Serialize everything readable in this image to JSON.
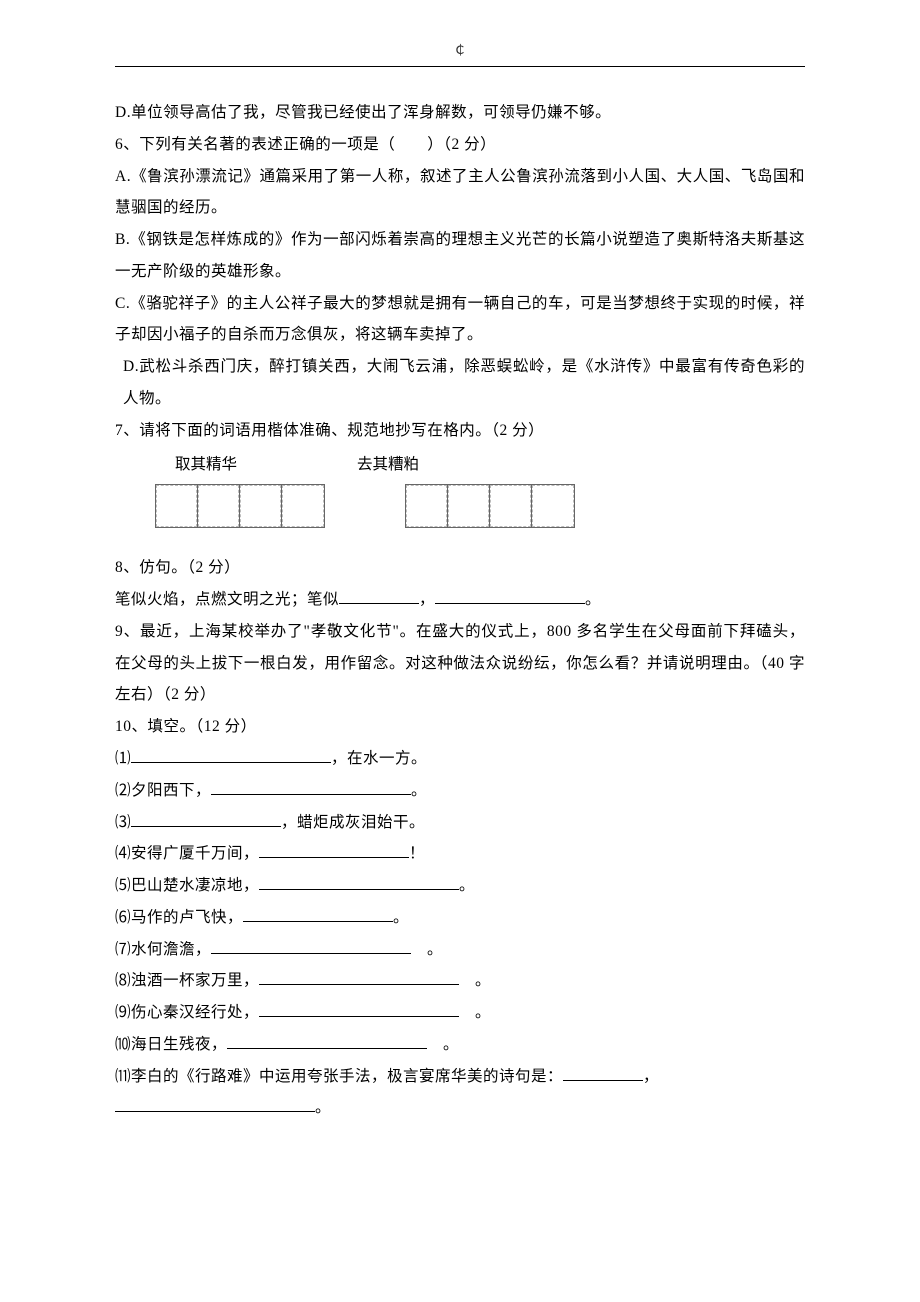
{
  "topMarker": "￠",
  "q5_d": "D.单位领导高估了我，尽管我已经使出了浑身解数，可领导仍嫌不够。",
  "q6": {
    "stem": "6、下列有关名著的表述正确的一项是（　　）（2 分）",
    "a": "A.《鲁滨孙漂流记》通篇采用了第一人称，叙述了主人公鲁滨孙流落到小人国、大人国、飞岛国和慧骃国的经历。",
    "b": "B.《钢铁是怎样炼成的》作为一部闪烁着崇高的理想主义光芒的长篇小说塑造了奥斯特洛夫斯基这一无产阶级的英雄形象。",
    "c": "C.《骆驼祥子》的主人公祥子最大的梦想就是拥有一辆自己的车，可是当梦想终于实现的时候，祥子却因小福子的自杀而万念俱灰，将这辆车卖掉了。",
    "d": "D.武松斗杀西门庆，醉打镇关西，大闹飞云浦，除恶蜈蚣岭，是《水浒传》中最富有传奇色彩的人物。"
  },
  "q7": {
    "stem": "7、请将下面的词语用楷体准确、规范地抄写在格内。（2 分）",
    "left": "取其精华",
    "right": "去其糟粕"
  },
  "q8": {
    "stem": "8、仿句。（2 分）",
    "body_prefix": "笔似火焰，点燃文明之光；笔似",
    "body_mid": "，",
    "body_suffix": "。"
  },
  "q9": {
    "text": "9、最近，上海某校举办了\"孝敬文化节\"。在盛大的仪式上，800 多名学生在父母面前下拜磕头，在父母的头上拔下一根白发，用作留念。对这种做法众说纷纭，你怎么看？并请说明理由。（40 字左右）（2 分）"
  },
  "q10": {
    "stem": "10、填空。（12 分）",
    "items": [
      {
        "prefix": "⑴",
        "before": "",
        "after": "，在水一方。",
        "blank": "long"
      },
      {
        "prefix": "⑵",
        "before": "夕阳西下，",
        "after": "。",
        "blank": "long"
      },
      {
        "prefix": "⑶",
        "before": "",
        "after": "，蜡炬成灰泪始干。",
        "blank": "med"
      },
      {
        "prefix": "⑷",
        "before": "安得广厦千万间，",
        "after": "！",
        "blank": "med"
      },
      {
        "prefix": "⑸",
        "before": "巴山楚水凄凉地，",
        "after": "。",
        "blank": "long"
      },
      {
        "prefix": "⑹",
        "before": "马作的卢飞快，",
        "after": "。",
        "blank": "med"
      },
      {
        "prefix": "⑺",
        "before": "水何澹澹，",
        "after": "　。",
        "blank": "long"
      },
      {
        "prefix": "⑻",
        "before": "浊酒一杯家万里，",
        "after": "　。",
        "blank": "long"
      },
      {
        "prefix": "⑼",
        "before": "伤心秦汉经行处，",
        "after": "　。",
        "blank": "long"
      },
      {
        "prefix": "⑽",
        "before": "海日生残夜，",
        "after": "　。",
        "blank": "long"
      }
    ],
    "item11_prefix": "⑾",
    "item11_text": "李白的《行路难》中运用夸张手法，极言宴席华美的诗句是：",
    "item11_mid": "，",
    "item11_end": "。"
  }
}
